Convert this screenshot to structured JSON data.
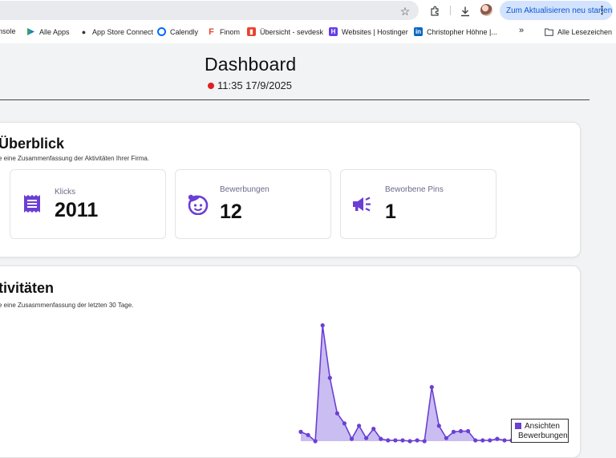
{
  "browser": {
    "update_button": "Zum Aktualisieren neu starten",
    "bookmarks": [
      {
        "label": "nsole",
        "icon": "console-icon"
      },
      {
        "label": "Alle Apps",
        "icon": "play-arrow-icon"
      },
      {
        "label": "App Store Connect",
        "icon": "apple-icon"
      },
      {
        "label": "Calendly",
        "icon": "calendly-icon"
      },
      {
        "label": "Finom",
        "icon": "finom-icon"
      },
      {
        "label": "Übersicht - sevdesk",
        "icon": "sevdesk-icon"
      },
      {
        "label": "Websites | Hostinger",
        "icon": "hostinger-icon"
      },
      {
        "label": "Christopher Höhne |...",
        "icon": "linkedin-icon"
      }
    ],
    "more_bookmarks": "»",
    "all_bookmarks": "Alle Lesezeichen"
  },
  "header": {
    "title": "Dashboard",
    "timestamp": "11:35 17/9/2025",
    "status_color": "#e02020"
  },
  "overview": {
    "title": "Überblick",
    "subtitle": "e eine Zusammenfassung der Aktivitäten Ihrer Firma.",
    "stats": [
      {
        "label": "Klicks",
        "value": "2011",
        "icon": "document-list-icon"
      },
      {
        "label": "Bewerbungen",
        "value": "12",
        "icon": "face-icon"
      },
      {
        "label": "Beworbene Pins",
        "value": "1",
        "icon": "megaphone-icon"
      }
    ],
    "accent": "#6b3fd4"
  },
  "activity": {
    "title": "tivitäten",
    "subtitle": "e eine Zusasmmenfassung der letzten 30 Tage."
  },
  "chart_data": {
    "type": "area",
    "series": [
      {
        "name": "Ansichten",
        "color": "#6b3fd4",
        "fill": "#c9bdf2",
        "values": [
          12,
          8,
          0,
          150,
          82,
          36,
          23,
          3,
          20,
          4,
          16,
          3,
          1,
          1,
          1,
          0,
          1,
          0,
          70,
          20,
          4,
          12,
          13,
          13,
          1,
          1,
          1,
          3,
          1,
          1
        ]
      },
      {
        "name": "Bewerbungen",
        "color": "#f2c94c",
        "values": []
      }
    ],
    "ylim": [
      0,
      160
    ],
    "grid": false,
    "legend": "bottom-right"
  }
}
